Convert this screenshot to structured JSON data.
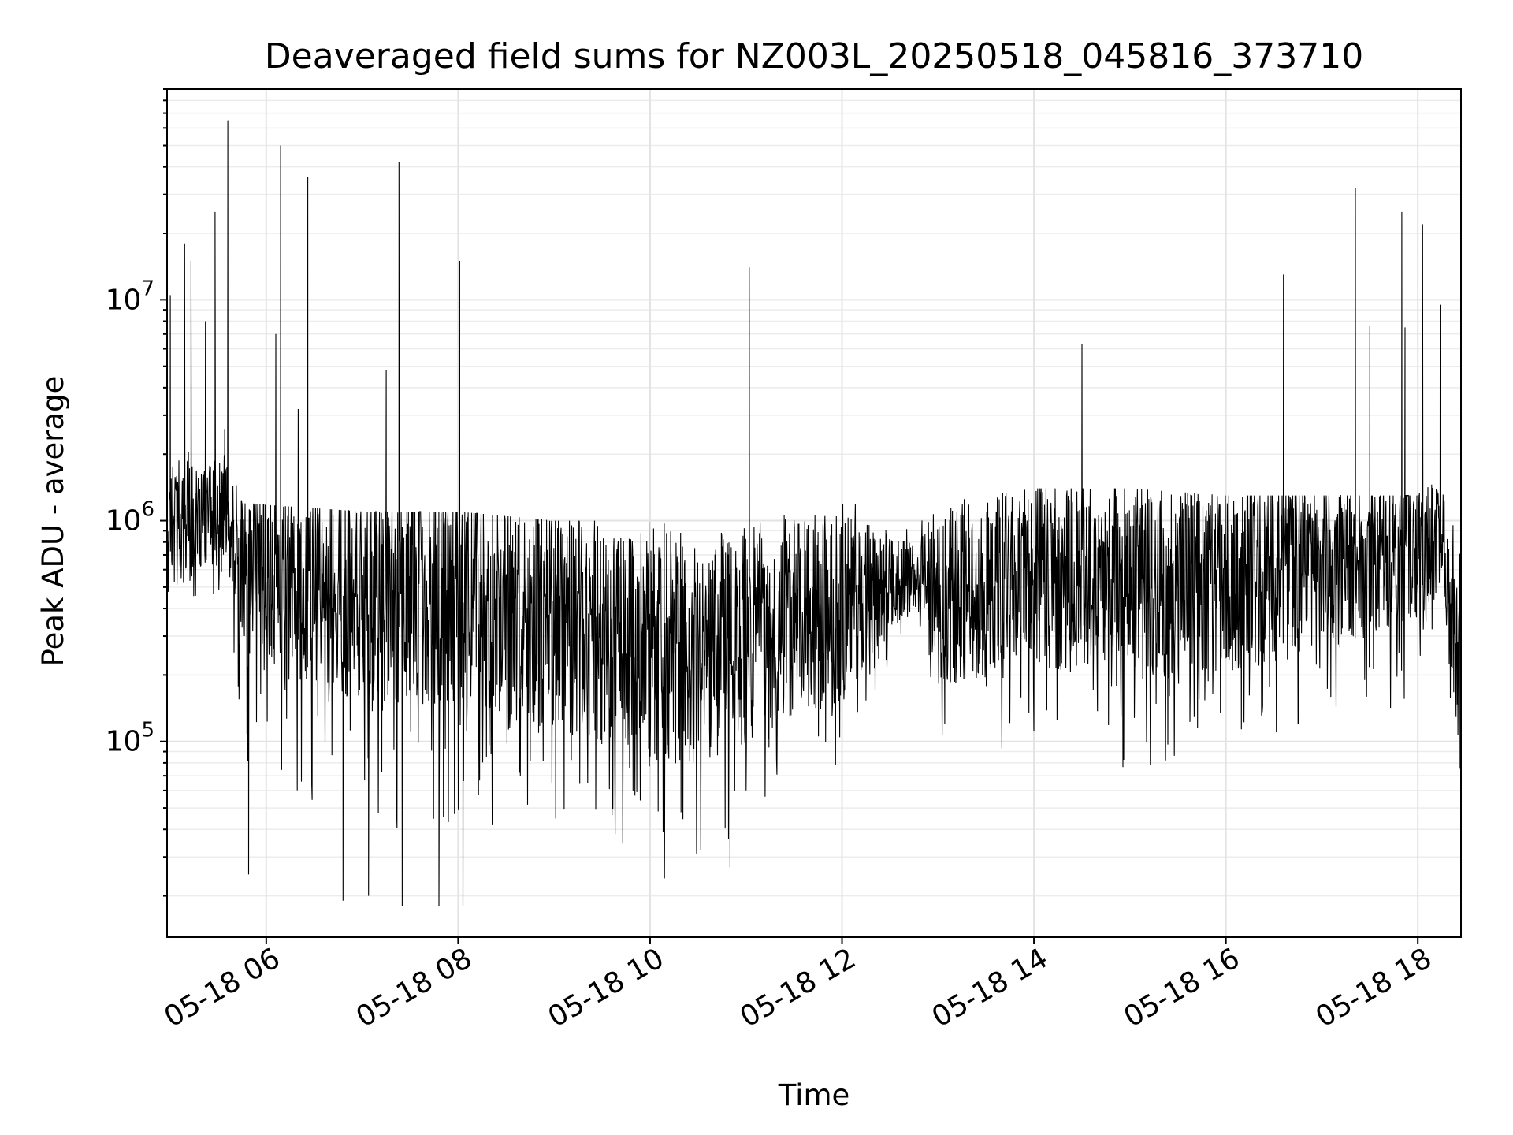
{
  "chart_data": {
    "type": "line",
    "title": "Deaveraged field sums for NZ003L_20250518_045816_373710",
    "xlabel": "Time",
    "ylabel": "Peak ADU - average",
    "yscale": "log",
    "grid": true,
    "xlim": [
      "2025-05-18 04:58",
      "2025-05-18 18:27"
    ],
    "ylim": [
      13000,
      90000000
    ],
    "x_ticks": [
      {
        "t": "2025-05-18 06:00",
        "label": "05-18 06"
      },
      {
        "t": "2025-05-18 08:00",
        "label": "05-18 08"
      },
      {
        "t": "2025-05-18 10:00",
        "label": "05-18 10"
      },
      {
        "t": "2025-05-18 12:00",
        "label": "05-18 12"
      },
      {
        "t": "2025-05-18 14:00",
        "label": "05-18 14"
      },
      {
        "t": "2025-05-18 16:00",
        "label": "05-18 16"
      },
      {
        "t": "2025-05-18 18:00",
        "label": "05-18 18"
      }
    ],
    "y_ticks": [
      {
        "value": 100000,
        "base": "10",
        "exp": "5"
      },
      {
        "value": 1000000,
        "base": "10",
        "exp": "6"
      },
      {
        "value": 10000000,
        "base": "10",
        "exp": "7"
      }
    ],
    "baseline_envelope": [
      {
        "t": "2025-05-18 04:58",
        "typical": 1000000,
        "low": 300000,
        "high": 2500000
      },
      {
        "t": "2025-05-18 05:35",
        "typical": 1200000,
        "low": 500000,
        "high": 2000000
      },
      {
        "t": "2025-05-18 05:45",
        "typical": 600000,
        "low": 80000,
        "high": 1200000
      },
      {
        "t": "2025-05-18 07:00",
        "typical": 550000,
        "low": 40000,
        "high": 1100000
      },
      {
        "t": "2025-05-18 08:00",
        "typical": 500000,
        "low": 40000,
        "high": 1100000
      },
      {
        "t": "2025-05-18 09:00",
        "typical": 400000,
        "low": 35000,
        "high": 1000000
      },
      {
        "t": "2025-05-18 10:00",
        "typical": 300000,
        "low": 30000,
        "high": 1000000
      },
      {
        "t": "2025-05-18 10:50",
        "typical": 300000,
        "low": 30000,
        "high": 1000000
      },
      {
        "t": "2025-05-18 11:15",
        "typical": 400000,
        "low": 60000,
        "high": 1300000
      },
      {
        "t": "2025-05-18 12:00",
        "typical": 450000,
        "low": 80000,
        "high": 1300000
      },
      {
        "t": "2025-05-18 12:45",
        "typical": 600000,
        "low": 400000,
        "high": 1000000
      },
      {
        "t": "2025-05-18 13:00",
        "typical": 500000,
        "low": 80000,
        "high": 1200000
      },
      {
        "t": "2025-05-18 14:00",
        "typical": 650000,
        "low": 80000,
        "high": 1400000
      },
      {
        "t": "2025-05-18 15:00",
        "typical": 600000,
        "low": 70000,
        "high": 1400000
      },
      {
        "t": "2025-05-18 16:00",
        "typical": 600000,
        "low": 70000,
        "high": 1300000
      },
      {
        "t": "2025-05-18 17:00",
        "typical": 700000,
        "low": 100000,
        "high": 1300000
      },
      {
        "t": "2025-05-18 18:00",
        "typical": 750000,
        "low": 150000,
        "high": 1300000
      },
      {
        "t": "2025-05-18 18:15",
        "typical": 900000,
        "low": 400000,
        "high": 1800000
      },
      {
        "t": "2025-05-18 18:27",
        "typical": 200000,
        "low": 35000,
        "high": 800000
      }
    ],
    "peaks": [
      {
        "t": "2025-05-18 05:00",
        "value": 10500000
      },
      {
        "t": "2025-05-18 05:09",
        "value": 18000000
      },
      {
        "t": "2025-05-18 05:13",
        "value": 15000000
      },
      {
        "t": "2025-05-18 05:22",
        "value": 8000000
      },
      {
        "t": "2025-05-18 05:28",
        "value": 25000000
      },
      {
        "t": "2025-05-18 05:34",
        "value": 2600000
      },
      {
        "t": "2025-05-18 05:36",
        "value": 65000000
      },
      {
        "t": "2025-05-18 06:06",
        "value": 7000000
      },
      {
        "t": "2025-05-18 06:09",
        "value": 50000000
      },
      {
        "t": "2025-05-18 06:20",
        "value": 3200000
      },
      {
        "t": "2025-05-18 06:26",
        "value": 36000000
      },
      {
        "t": "2025-05-18 07:15",
        "value": 4800000
      },
      {
        "t": "2025-05-18 07:23",
        "value": 42000000
      },
      {
        "t": "2025-05-18 08:01",
        "value": 15000000
      },
      {
        "t": "2025-05-18 11:02",
        "value": 14000000
      },
      {
        "t": "2025-05-18 14:30",
        "value": 6300000
      },
      {
        "t": "2025-05-18 16:36",
        "value": 13000000
      },
      {
        "t": "2025-05-18 17:21",
        "value": 32000000
      },
      {
        "t": "2025-05-18 17:30",
        "value": 7600000
      },
      {
        "t": "2025-05-18 17:50",
        "value": 25000000
      },
      {
        "t": "2025-05-18 17:52",
        "value": 7500000
      },
      {
        "t": "2025-05-18 18:03",
        "value": 22000000
      },
      {
        "t": "2025-05-18 18:14",
        "value": 9500000
      }
    ],
    "dips": [
      {
        "t": "2025-05-18 05:49",
        "value": 25000
      },
      {
        "t": "2025-05-18 06:48",
        "value": 19000
      },
      {
        "t": "2025-05-18 07:04",
        "value": 20000
      },
      {
        "t": "2025-05-18 07:25",
        "value": 18000
      },
      {
        "t": "2025-05-18 07:48",
        "value": 18000
      },
      {
        "t": "2025-05-18 08:03",
        "value": 18000
      },
      {
        "t": "2025-05-18 10:09",
        "value": 24000
      },
      {
        "t": "2025-05-18 10:50",
        "value": 27000
      }
    ]
  }
}
